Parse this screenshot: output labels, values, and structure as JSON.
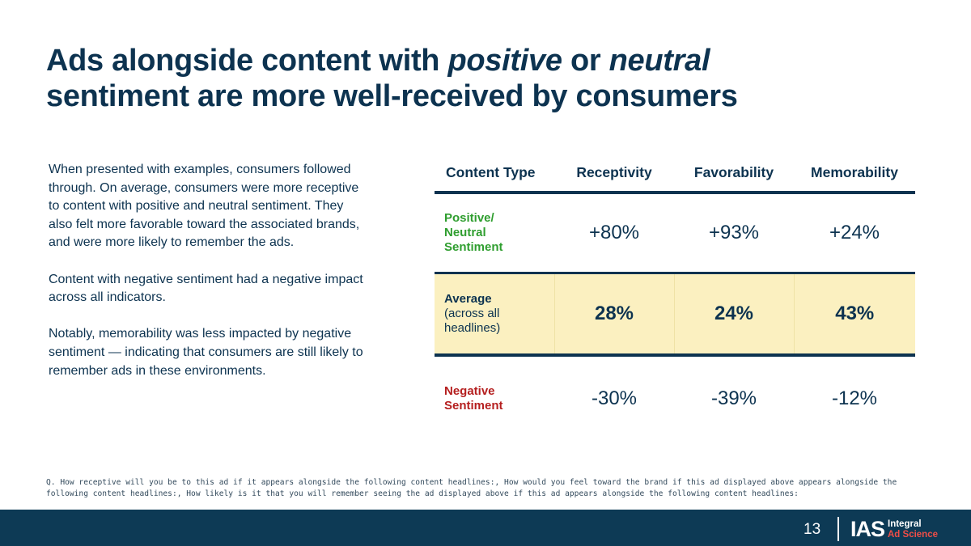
{
  "title": {
    "part1": "Ads alongside content with ",
    "em1": "positive",
    "part2": " or ",
    "em2": "neutral",
    "part3": " sentiment are more well-received by consumers"
  },
  "body": {
    "paragraphs": [
      "When presented with examples, consumers followed through. On average, consumers were more receptive to content with positive and neutral sentiment. They also felt more favorable toward the associated brands, and were more likely to remember the ads.",
      "Content with negative sentiment had a negative impact across all indicators.",
      "Notably, memorability was less impacted by negative sentiment — indicating that consumers are still likely to remember ads in these environments."
    ]
  },
  "table": {
    "headers": [
      "Content Type",
      "Receptivity",
      "Favorability",
      "Memorability"
    ],
    "rows": [
      {
        "label_line1": "Positive/",
        "label_line2": "Neutral",
        "label_line3": "Sentiment",
        "values": [
          "+80%",
          "+93%",
          "+24%"
        ],
        "label_color": "#2f9e2f"
      },
      {
        "label_line1": "Average",
        "label_line2": "(across all",
        "label_line3": "headlines)",
        "values": [
          "28%",
          "24%",
          "43%"
        ],
        "highlight_color": "#fbf0c0"
      },
      {
        "label_line1": "Negative",
        "label_line2": "Sentiment",
        "values": [
          "-30%",
          "-39%",
          "-12%"
        ],
        "label_color": "#b51f1f"
      }
    ]
  },
  "footnote": "Q. How receptive will you be to this ad if it appears alongside the following content headlines:, How would you feel toward the brand if this ad displayed above appears alongside the following content headlines:, How likely is it that you will remember seeing the ad displayed above if this ad appears alongside the following content headlines:",
  "footer": {
    "page_number": "13",
    "logo_mark": "IAS",
    "logo_line1": "Integral",
    "logo_line2": "Ad Science"
  }
}
